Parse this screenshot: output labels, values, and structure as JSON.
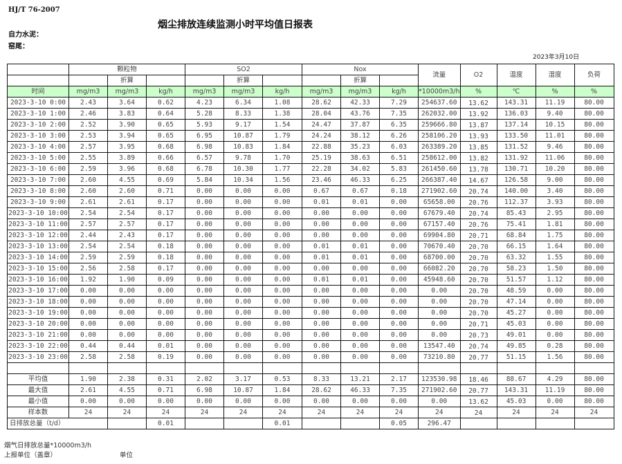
{
  "header": {
    "standard": "HJ/T   76-2007",
    "title": "烟尘排放连续监测小时平均值日报表",
    "company": "自力水泥：",
    "unit": "窑尾：",
    "date": "2023年3月10日"
  },
  "table": {
    "groups": [
      "颗粒物",
      "SO2",
      "Nox"
    ],
    "converted_label": "折算",
    "single_headers": [
      "流量",
      "O2",
      "温度",
      "湿度",
      "负荷"
    ],
    "units": [
      "时间",
      "mg/m3",
      "mg/m3",
      "kg/h",
      "mg/m3",
      "mg/m3",
      "kg/h",
      "mg/m3",
      "mg/m3",
      "kg/h",
      "*10000m3/h",
      "%",
      "℃",
      "%",
      "%"
    ],
    "rows": [
      [
        "2023-3-10 0:00",
        "2.43",
        "3.64",
        "0.62",
        "4.23",
        "6.34",
        "1.08",
        "28.62",
        "42.33",
        "7.29",
        "254637.60",
        "13.62",
        "143.31",
        "11.19",
        "80.00"
      ],
      [
        "2023-3-10 1:00",
        "2.46",
        "3.83",
        "0.64",
        "5.28",
        "8.33",
        "1.38",
        "28.04",
        "43.76",
        "7.35",
        "262032.00",
        "13.92",
        "136.03",
        "9.40",
        "80.00"
      ],
      [
        "2023-3-10 2:00",
        "2.52",
        "3.90",
        "0.65",
        "5.93",
        "9.17",
        "1.54",
        "24.47",
        "37.87",
        "6.35",
        "259666.80",
        "13.87",
        "137.14",
        "10.15",
        "80.00"
      ],
      [
        "2023-3-10 3:00",
        "2.53",
        "3.94",
        "0.65",
        "6.95",
        "10.87",
        "1.79",
        "24.24",
        "38.12",
        "6.26",
        "258106.20",
        "13.93",
        "133.50",
        "11.01",
        "80.00"
      ],
      [
        "2023-3-10 4:00",
        "2.57",
        "3.95",
        "0.68",
        "6.98",
        "10.83",
        "1.84",
        "22.88",
        "35.23",
        "6.03",
        "263389.20",
        "13.85",
        "131.52",
        "9.46",
        "80.00"
      ],
      [
        "2023-3-10 5:00",
        "2.55",
        "3.89",
        "0.66",
        "6.57",
        "9.78",
        "1.70",
        "25.19",
        "38.63",
        "6.51",
        "258612.00",
        "13.82",
        "131.92",
        "11.06",
        "80.00"
      ],
      [
        "2023-3-10 6:00",
        "2.59",
        "3.96",
        "0.68",
        "6.78",
        "10.30",
        "1.77",
        "22.28",
        "34.02",
        "5.83",
        "261450.60",
        "13.78",
        "130.71",
        "10.20",
        "80.00"
      ],
      [
        "2023-3-10 7:00",
        "2.60",
        "4.55",
        "0.69",
        "5.84",
        "10.34",
        "1.56",
        "23.46",
        "46.33",
        "6.25",
        "266387.40",
        "14.67",
        "126.58",
        "9.00",
        "80.00"
      ],
      [
        "2023-3-10 8:00",
        "2.60",
        "2.60",
        "0.71",
        "0.00",
        "0.00",
        "0.00",
        "0.67",
        "0.67",
        "0.18",
        "271902.60",
        "20.74",
        "140.00",
        "3.40",
        "80.00"
      ],
      [
        "2023-3-10 9:00",
        "2.61",
        "2.61",
        "0.17",
        "0.00",
        "0.00",
        "0.00",
        "0.01",
        "0.01",
        "0.00",
        "65658.00",
        "20.76",
        "112.37",
        "3.93",
        "80.00"
      ],
      [
        "2023-3-10 10:00",
        "2.54",
        "2.54",
        "0.17",
        "0.00",
        "0.00",
        "0.00",
        "0.00",
        "0.00",
        "0.00",
        "67679.40",
        "20.74",
        "85.43",
        "2.95",
        "80.00"
      ],
      [
        "2023-3-10 11:00",
        "2.57",
        "2.57",
        "0.17",
        "0.00",
        "0.00",
        "0.00",
        "0.00",
        "0.00",
        "0.00",
        "67157.40",
        "20.76",
        "75.41",
        "1.81",
        "80.00"
      ],
      [
        "2023-3-10 12:00",
        "2.44",
        "2.43",
        "0.17",
        "0.00",
        "0.00",
        "0.00",
        "0.00",
        "0.00",
        "0.00",
        "69904.80",
        "20.71",
        "68.84",
        "1.75",
        "80.00"
      ],
      [
        "2023-3-10 13:00",
        "2.54",
        "2.54",
        "0.18",
        "0.00",
        "0.00",
        "0.00",
        "0.01",
        "0.01",
        "0.00",
        "70670.40",
        "20.70",
        "66.15",
        "1.64",
        "80.00"
      ],
      [
        "2023-3-10 14:00",
        "2.59",
        "2.59",
        "0.18",
        "0.00",
        "0.00",
        "0.00",
        "0.01",
        "0.01",
        "0.00",
        "68700.00",
        "20.70",
        "63.32",
        "1.55",
        "80.00"
      ],
      [
        "2023-3-10 15:00",
        "2.56",
        "2.58",
        "0.17",
        "0.00",
        "0.00",
        "0.00",
        "0.00",
        "0.00",
        "0.00",
        "66082.20",
        "20.70",
        "58.23",
        "1.50",
        "80.00"
      ],
      [
        "2023-3-10 16:00",
        "1.92",
        "1.90",
        "0.09",
        "0.00",
        "0.00",
        "0.00",
        "0.01",
        "0.01",
        "0.00",
        "45948.60",
        "20.70",
        "51.57",
        "1.12",
        "80.00"
      ],
      [
        "2023-3-10 17:00",
        "0.00",
        "0.00",
        "0.00",
        "0.00",
        "0.00",
        "0.00",
        "0.00",
        "0.00",
        "0.00",
        "0.00",
        "20.70",
        "48.59",
        "0.00",
        "80.00"
      ],
      [
        "2023-3-10 18:00",
        "0.00",
        "0.00",
        "0.00",
        "0.00",
        "0.00",
        "0.00",
        "0.00",
        "0.00",
        "0.00",
        "0.00",
        "20.70",
        "47.14",
        "0.00",
        "80.00"
      ],
      [
        "2023-3-10 19:00",
        "0.00",
        "0.00",
        "0.00",
        "0.00",
        "0.00",
        "0.00",
        "0.00",
        "0.00",
        "0.00",
        "0.00",
        "20.70",
        "45.27",
        "0.00",
        "80.00"
      ],
      [
        "2023-3-10 20:00",
        "0.00",
        "0.00",
        "0.00",
        "0.00",
        "0.00",
        "0.00",
        "0.00",
        "0.00",
        "0.00",
        "0.00",
        "20.71",
        "45.03",
        "0.00",
        "80.00"
      ],
      [
        "2023-3-10 21:00",
        "0.00",
        "0.00",
        "0.00",
        "0.00",
        "0.00",
        "0.00",
        "0.00",
        "0.00",
        "0.00",
        "0.00",
        "20.73",
        "49.01",
        "0.00",
        "80.00"
      ],
      [
        "2023-3-10 22:00",
        "0.44",
        "0.44",
        "0.01",
        "0.00",
        "0.00",
        "0.00",
        "0.00",
        "0.00",
        "0.00",
        "13547.40",
        "20.74",
        "49.85",
        "0.28",
        "80.00"
      ],
      [
        "2023-3-10 23:00",
        "2.58",
        "2.58",
        "0.19",
        "0.00",
        "0.00",
        "0.00",
        "0.00",
        "0.00",
        "0.00",
        "73210.80",
        "20.77",
        "51.15",
        "1.56",
        "80.00"
      ]
    ],
    "summary": [
      [
        "平均值",
        "1.90",
        "2.38",
        "0.31",
        "2.02",
        "3.17",
        "0.53",
        "8.33",
        "13.21",
        "2.17",
        "123530.98",
        "18.46",
        "88.67",
        "4.29",
        "80.00"
      ],
      [
        "最大值",
        "2.61",
        "4.55",
        "0.71",
        "6.98",
        "10.87",
        "1.84",
        "28.62",
        "46.33",
        "7.35",
        "271902.60",
        "20.77",
        "143.31",
        "11.19",
        "80.00"
      ],
      [
        "最小值",
        "0.00",
        "0.00",
        "0.00",
        "0.00",
        "0.00",
        "0.00",
        "0.00",
        "0.00",
        "0.00",
        "0.00",
        "13.62",
        "45.03",
        "0.00",
        "80.00"
      ],
      [
        "样本数",
        "24",
        "24",
        "24",
        "24",
        "24",
        "24",
        "24",
        "24",
        "24",
        "24",
        "24",
        "24",
        "24",
        "24"
      ]
    ],
    "total": {
      "label": "日排放总量（t/d）",
      "values": [
        "",
        "0.01",
        "",
        "",
        "0.01",
        "",
        "",
        "0.05",
        "296.47",
        "",
        "",
        "",
        ""
      ]
    }
  },
  "footer": {
    "flue_gas_total": "烟气日排放总量*10000m3/h",
    "reporting_unit": "上报单位（盖章）",
    "unit_label": "单位"
  }
}
